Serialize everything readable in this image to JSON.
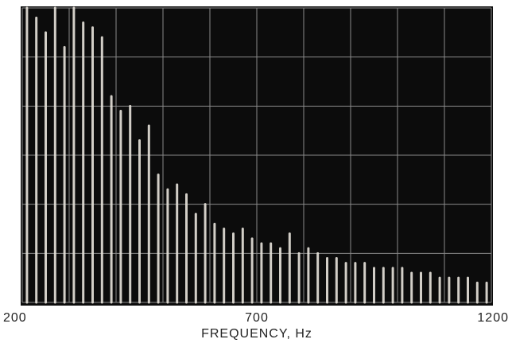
{
  "chart_data": {
    "type": "spectrum",
    "xlabel": "FREQUENCY, Hz",
    "xlim": [
      200,
      1200
    ],
    "xticks": [
      200,
      700,
      1200
    ],
    "xgrid": [
      200,
      300,
      400,
      500,
      600,
      700,
      800,
      900,
      1000,
      1100,
      1200
    ],
    "ylim": [
      0,
      6
    ],
    "ygrid": [
      0,
      1,
      2,
      3,
      4,
      5,
      6
    ],
    "color": "#e8e4dc",
    "x": [
      210,
      230,
      250,
      270,
      290,
      310,
      330,
      350,
      370,
      390,
      410,
      430,
      450,
      470,
      490,
      510,
      530,
      550,
      570,
      590,
      610,
      630,
      650,
      670,
      690,
      710,
      730,
      750,
      770,
      790,
      810,
      830,
      850,
      870,
      890,
      910,
      930,
      950,
      970,
      990,
      1010,
      1030,
      1050,
      1070,
      1090,
      1110,
      1130,
      1150,
      1170,
      1190
    ],
    "values": [
      6,
      5.8,
      5.5,
      6,
      5.2,
      6,
      5.7,
      5.6,
      5.4,
      4.2,
      3.9,
      4.0,
      3.3,
      3.6,
      2.6,
      2.3,
      2.4,
      2.2,
      1.8,
      2.0,
      1.6,
      1.5,
      1.4,
      1.5,
      1.3,
      1.2,
      1.2,
      1.1,
      1.4,
      1.0,
      1.1,
      1.0,
      0.9,
      0.9,
      0.8,
      0.8,
      0.8,
      0.7,
      0.7,
      0.7,
      0.7,
      0.6,
      0.6,
      0.6,
      0.5,
      0.5,
      0.5,
      0.5,
      0.4,
      0.4
    ]
  }
}
